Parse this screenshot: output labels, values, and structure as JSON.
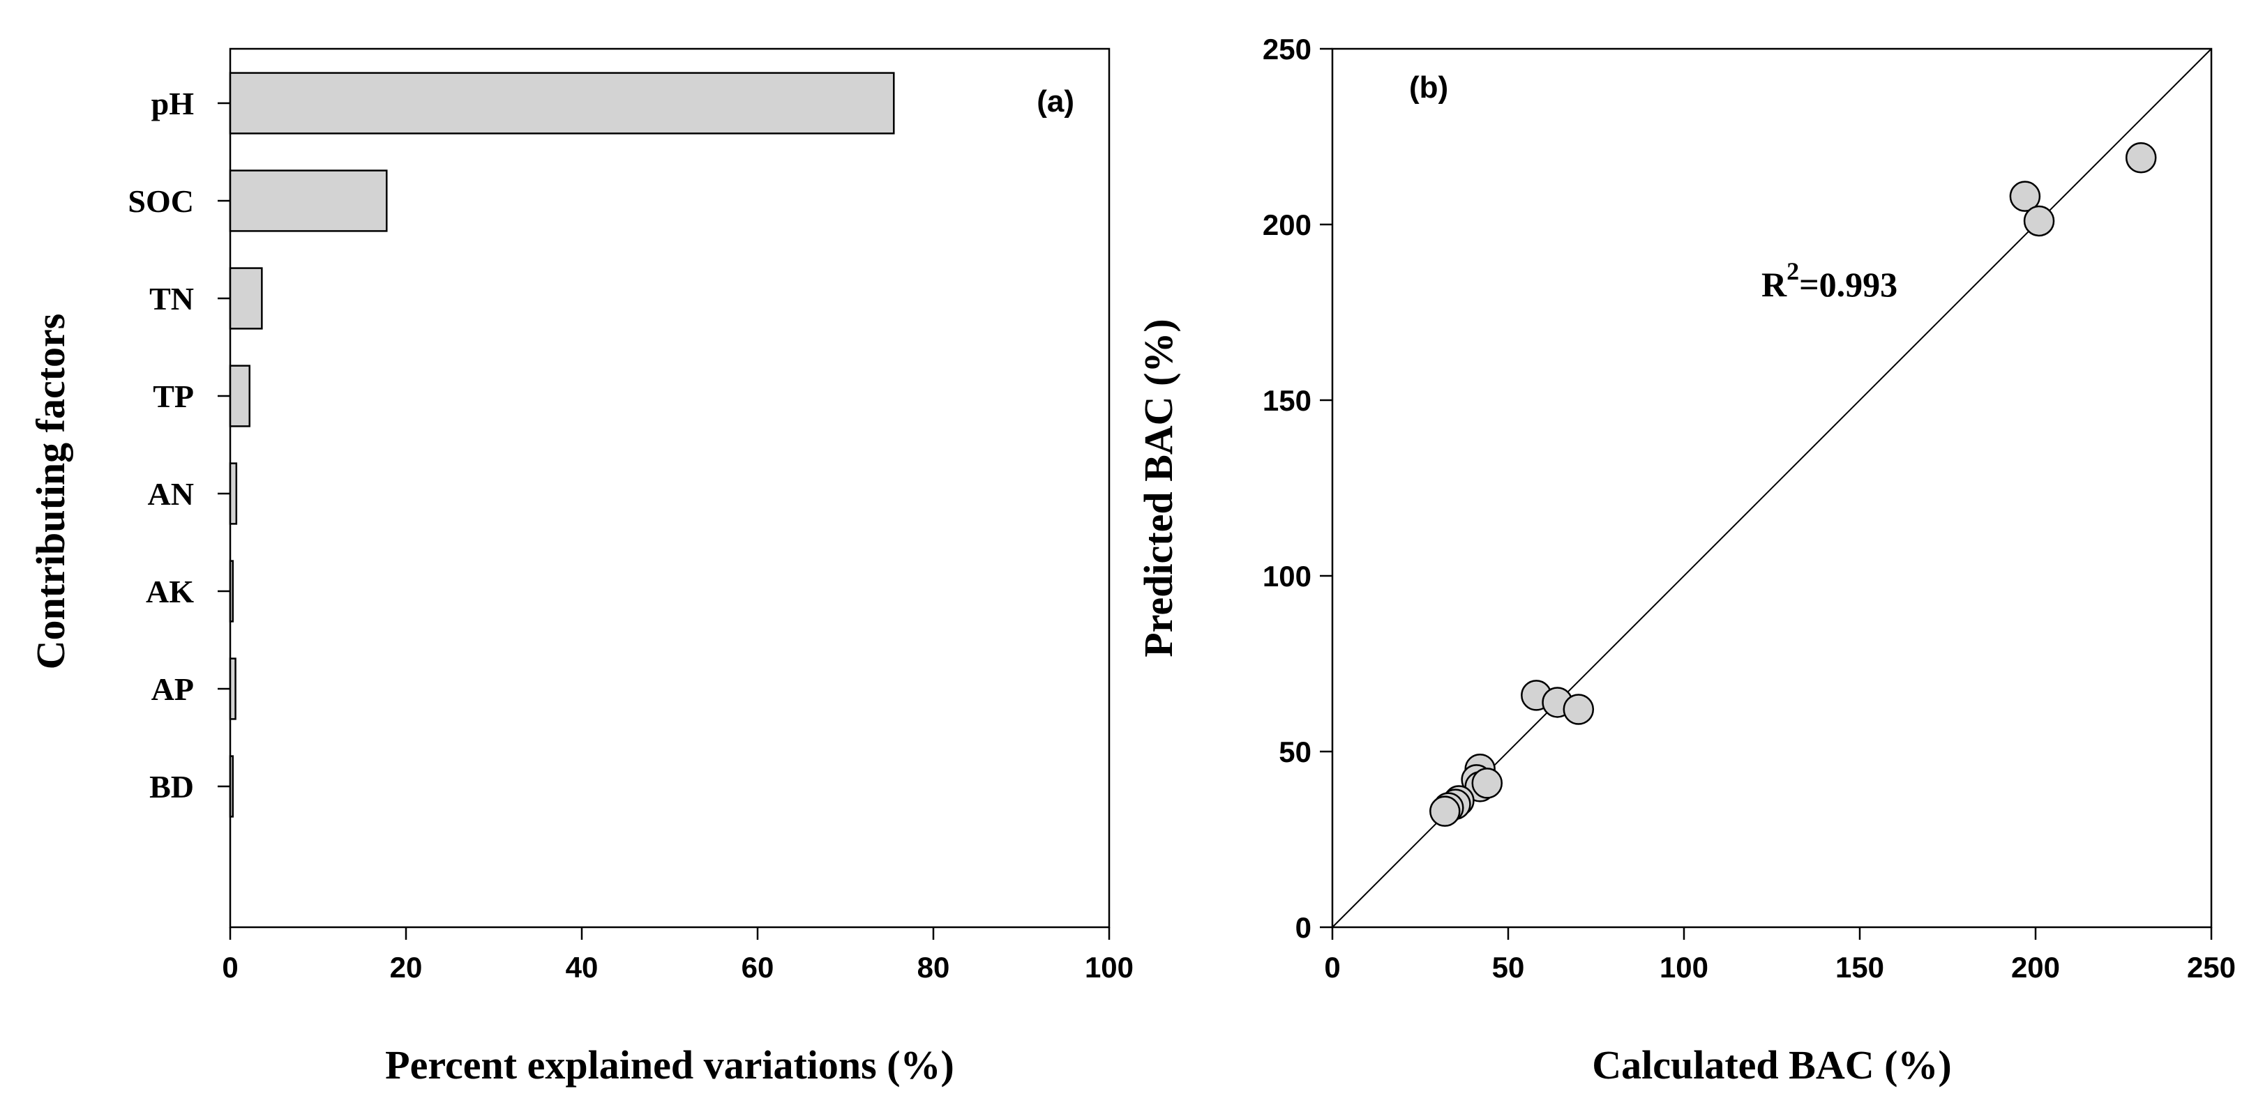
{
  "chart_data": [
    {
      "type": "bar",
      "orientation": "horizontal",
      "panel_label": "(a)",
      "categories": [
        "pH",
        "SOC",
        "TN",
        "TP",
        "AN",
        "AK",
        "AP",
        "BD"
      ],
      "values": [
        75.5,
        17.8,
        3.6,
        2.2,
        0.7,
        0.3,
        0.6,
        0.3
      ],
      "xlabel": "Percent explained variations (%)",
      "ylabel": "Contributing factors",
      "xlim": [
        0,
        100
      ],
      "xticks": [
        "0",
        "20",
        "40",
        "60",
        "80",
        "100"
      ],
      "bar_color": "#d3d3d3"
    },
    {
      "type": "scatter",
      "panel_label": "(b)",
      "xlabel": "Calculated BAC (%)",
      "ylabel": "Predicted BAC (%)",
      "xlim": [
        0,
        250
      ],
      "ylim": [
        0,
        250
      ],
      "xticks": [
        "0",
        "50",
        "100",
        "150",
        "200",
        "250"
      ],
      "yticks": [
        "0",
        "50",
        "100",
        "150",
        "200",
        "250"
      ],
      "points": [
        {
          "x": 230,
          "y": 219
        },
        {
          "x": 197,
          "y": 208
        },
        {
          "x": 201,
          "y": 201
        },
        {
          "x": 58,
          "y": 66
        },
        {
          "x": 64,
          "y": 64
        },
        {
          "x": 70,
          "y": 62
        },
        {
          "x": 42,
          "y": 45
        },
        {
          "x": 41,
          "y": 42
        },
        {
          "x": 42,
          "y": 40
        },
        {
          "x": 44,
          "y": 41
        },
        {
          "x": 36,
          "y": 36
        },
        {
          "x": 35,
          "y": 35
        },
        {
          "x": 33,
          "y": 34
        },
        {
          "x": 32,
          "y": 33
        }
      ],
      "reference_line": {
        "x": [
          0,
          250
        ],
        "y": [
          0,
          250
        ]
      },
      "annotation": {
        "base": "R",
        "sup": "2",
        "rest": "=0.993"
      },
      "point_color": "#d3d3d3"
    }
  ]
}
